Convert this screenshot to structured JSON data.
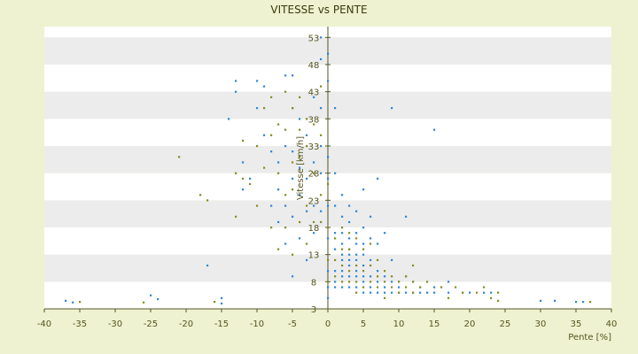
{
  "chart_data": {
    "type": "scatter",
    "title": "VITESSE vs PENTE",
    "xlabel": "Pente [%]",
    "ylabel": "Vitesse [km/h]",
    "xlim": [
      -40,
      40
    ],
    "ylim": [
      3,
      55
    ],
    "x_ticks": [
      -40,
      -35,
      -30,
      -25,
      -20,
      -15,
      -10,
      -5,
      0,
      5,
      10,
      15,
      20,
      25,
      30,
      35,
      40
    ],
    "y_ticks": [
      3,
      8,
      13,
      18,
      23,
      28,
      33,
      38,
      43,
      48,
      53
    ],
    "grid": "horizontal bands",
    "legend": "none",
    "colors": {
      "background": "#eef2d0",
      "band_light": "#ffffff",
      "band_dark": "#ececec",
      "series_a": "#2e86d6",
      "series_b": "#8a8a20",
      "axis": "#55552a"
    },
    "series": [
      {
        "color": "#2e86d6",
        "points": [
          [
            -37,
            4.5
          ],
          [
            -36,
            4.2
          ],
          [
            -25,
            5.5
          ],
          [
            -24,
            4.8
          ],
          [
            -17,
            11
          ],
          [
            -15,
            5
          ],
          [
            -15,
            4
          ],
          [
            -13,
            45
          ],
          [
            -13,
            43
          ],
          [
            -14,
            38
          ],
          [
            -12,
            30
          ],
          [
            -12,
            25
          ],
          [
            -11,
            27
          ],
          [
            -10,
            45
          ],
          [
            -10,
            40
          ],
          [
            -9,
            44
          ],
          [
            -9,
            35
          ],
          [
            -8,
            32
          ],
          [
            -8,
            22
          ],
          [
            -7,
            30
          ],
          [
            -7,
            25
          ],
          [
            -7,
            19
          ],
          [
            -6,
            46
          ],
          [
            -6,
            33
          ],
          [
            -6,
            22
          ],
          [
            -6,
            15
          ],
          [
            -5,
            46
          ],
          [
            -5,
            40
          ],
          [
            -5,
            32
          ],
          [
            -5,
            27
          ],
          [
            -5,
            20
          ],
          [
            -5,
            9
          ],
          [
            -4,
            38
          ],
          [
            -4,
            29
          ],
          [
            -4,
            24
          ],
          [
            -4,
            16
          ],
          [
            -3,
            35
          ],
          [
            -3,
            27
          ],
          [
            -3,
            21
          ],
          [
            -3,
            12
          ],
          [
            -2,
            42
          ],
          [
            -2,
            30
          ],
          [
            -2,
            22
          ],
          [
            -2,
            17
          ],
          [
            -1,
            53
          ],
          [
            -1,
            49
          ],
          [
            -1,
            40
          ],
          [
            -1,
            33
          ],
          [
            -1,
            28
          ],
          [
            -1,
            21
          ],
          [
            0,
            50
          ],
          [
            0,
            45
          ],
          [
            0,
            31
          ],
          [
            0,
            27
          ],
          [
            0,
            22
          ],
          [
            0,
            16
          ],
          [
            0,
            10
          ],
          [
            0,
            7
          ],
          [
            0,
            5
          ],
          [
            1,
            40
          ],
          [
            1,
            28
          ],
          [
            1,
            22
          ],
          [
            1,
            17
          ],
          [
            1,
            14
          ],
          [
            1,
            10
          ],
          [
            1,
            8
          ],
          [
            1,
            7
          ],
          [
            2,
            24
          ],
          [
            2,
            20
          ],
          [
            2,
            17
          ],
          [
            2,
            15
          ],
          [
            2,
            13
          ],
          [
            2,
            12
          ],
          [
            2,
            10
          ],
          [
            2,
            9
          ],
          [
            2,
            7
          ],
          [
            3,
            22
          ],
          [
            3,
            19
          ],
          [
            3,
            16
          ],
          [
            3,
            14
          ],
          [
            3,
            13
          ],
          [
            3,
            12
          ],
          [
            3,
            11
          ],
          [
            3,
            9
          ],
          [
            3,
            7
          ],
          [
            4,
            21
          ],
          [
            4,
            17
          ],
          [
            4,
            15
          ],
          [
            4,
            13
          ],
          [
            4,
            12
          ],
          [
            4,
            10
          ],
          [
            4,
            9
          ],
          [
            4,
            7
          ],
          [
            5,
            25
          ],
          [
            5,
            18
          ],
          [
            5,
            15
          ],
          [
            5,
            13
          ],
          [
            5,
            11
          ],
          [
            5,
            9
          ],
          [
            5,
            8
          ],
          [
            5,
            6
          ],
          [
            6,
            20
          ],
          [
            6,
            16
          ],
          [
            6,
            12
          ],
          [
            6,
            9
          ],
          [
            6,
            7
          ],
          [
            6,
            6
          ],
          [
            7,
            27
          ],
          [
            7,
            15
          ],
          [
            7,
            10
          ],
          [
            7,
            8
          ],
          [
            7,
            6
          ],
          [
            8,
            17
          ],
          [
            8,
            9
          ],
          [
            8,
            7
          ],
          [
            8,
            6
          ],
          [
            9,
            40
          ],
          [
            9,
            12
          ],
          [
            9,
            8
          ],
          [
            9,
            6
          ],
          [
            10,
            8
          ],
          [
            10,
            7
          ],
          [
            10,
            6
          ],
          [
            11,
            20
          ],
          [
            11,
            9
          ],
          [
            11,
            6
          ],
          [
            12,
            8
          ],
          [
            12,
            6
          ],
          [
            13,
            7
          ],
          [
            13,
            6
          ],
          [
            14,
            6
          ],
          [
            15,
            36
          ],
          [
            15,
            7
          ],
          [
            15,
            6
          ],
          [
            17,
            8
          ],
          [
            17,
            6
          ],
          [
            19,
            6
          ],
          [
            20,
            6
          ],
          [
            22,
            6
          ],
          [
            23,
            6
          ],
          [
            30,
            4.5
          ],
          [
            32,
            4.5
          ],
          [
            35,
            4.3
          ],
          [
            36,
            4.3
          ]
        ]
      },
      {
        "color": "#8a8a20",
        "points": [
          [
            -35,
            4.3
          ],
          [
            -26,
            4.2
          ],
          [
            -21,
            31
          ],
          [
            -18,
            24
          ],
          [
            -17,
            23
          ],
          [
            -16,
            4.3
          ],
          [
            -13,
            28
          ],
          [
            -13,
            20
          ],
          [
            -12,
            34
          ],
          [
            -12,
            27
          ],
          [
            -11,
            26
          ],
          [
            -10,
            33
          ],
          [
            -10,
            22
          ],
          [
            -9,
            40
          ],
          [
            -9,
            29
          ],
          [
            -8,
            42
          ],
          [
            -8,
            35
          ],
          [
            -8,
            18
          ],
          [
            -7,
            37
          ],
          [
            -7,
            28
          ],
          [
            -7,
            14
          ],
          [
            -6,
            43
          ],
          [
            -6,
            36
          ],
          [
            -6,
            24
          ],
          [
            -6,
            18
          ],
          [
            -5,
            40
          ],
          [
            -5,
            30
          ],
          [
            -5,
            25
          ],
          [
            -5,
            13
          ],
          [
            -4,
            42
          ],
          [
            -4,
            36
          ],
          [
            -4,
            31
          ],
          [
            -4,
            19
          ],
          [
            -3,
            38
          ],
          [
            -3,
            33
          ],
          [
            -3,
            22
          ],
          [
            -3,
            15
          ],
          [
            -2,
            37
          ],
          [
            -2,
            28
          ],
          [
            -2,
            19
          ],
          [
            -1,
            44
          ],
          [
            -1,
            35
          ],
          [
            -1,
            24
          ],
          [
            -1,
            19
          ],
          [
            0,
            26
          ],
          [
            0,
            18
          ],
          [
            0,
            12
          ],
          [
            0,
            8
          ],
          [
            1,
            16
          ],
          [
            1,
            12
          ],
          [
            1,
            9
          ],
          [
            2,
            18
          ],
          [
            2,
            14
          ],
          [
            2,
            11
          ],
          [
            2,
            8
          ],
          [
            3,
            17
          ],
          [
            3,
            14
          ],
          [
            3,
            10
          ],
          [
            3,
            8
          ],
          [
            4,
            16
          ],
          [
            4,
            11
          ],
          [
            4,
            8
          ],
          [
            4,
            6
          ],
          [
            5,
            14
          ],
          [
            5,
            10
          ],
          [
            5,
            7
          ],
          [
            6,
            15
          ],
          [
            6,
            11
          ],
          [
            6,
            8
          ],
          [
            7,
            12
          ],
          [
            7,
            9
          ],
          [
            7,
            7
          ],
          [
            8,
            10
          ],
          [
            8,
            8
          ],
          [
            8,
            5
          ],
          [
            9,
            9
          ],
          [
            9,
            7
          ],
          [
            10,
            8
          ],
          [
            10,
            6
          ],
          [
            11,
            9
          ],
          [
            11,
            7
          ],
          [
            12,
            11
          ],
          [
            12,
            8
          ],
          [
            12,
            6
          ],
          [
            13,
            7
          ],
          [
            14,
            8
          ],
          [
            16,
            7
          ],
          [
            17,
            5
          ],
          [
            18,
            7
          ],
          [
            19,
            6
          ],
          [
            21,
            6
          ],
          [
            22,
            7
          ],
          [
            23,
            5
          ],
          [
            24,
            6
          ],
          [
            24,
            4.5
          ],
          [
            37,
            4.3
          ]
        ]
      }
    ]
  }
}
